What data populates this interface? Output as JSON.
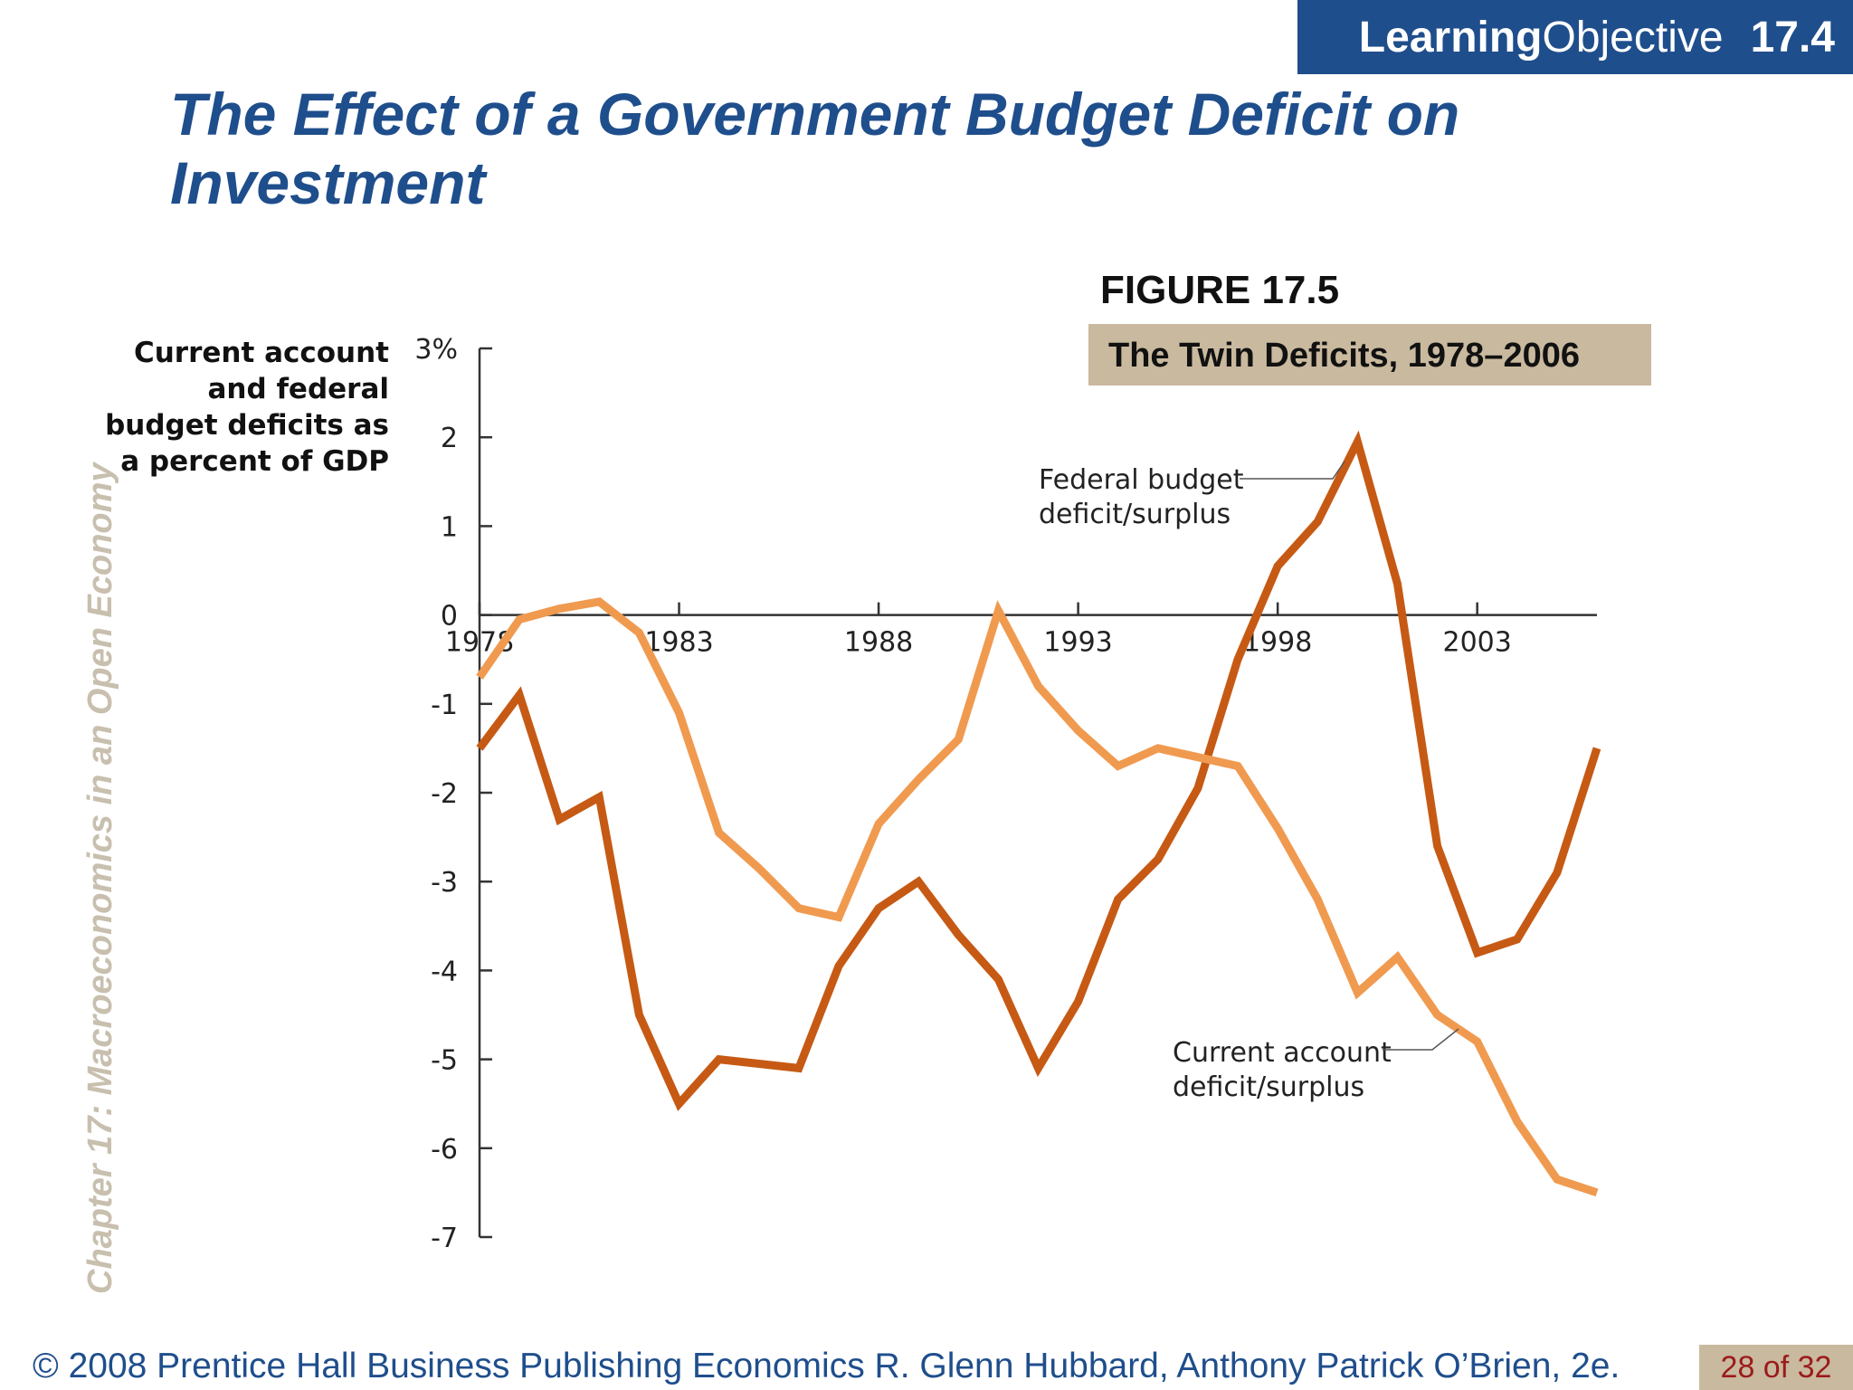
{
  "header": {
    "lo_bold": "Learning",
    "lo_rest": " Objective",
    "lo_number": "17.4"
  },
  "slide_title": "The Effect of a Government Budget Deficit on Investment",
  "sidebar_text": "Chapter 17:  Macroeconomics in an Open Economy",
  "figure": {
    "label": "FIGURE 17.5",
    "caption": "The Twin Deficits, 1978–2006"
  },
  "footer": {
    "copyright": "© 2008 Prentice Hall Business Publishing   Economics  R. Glenn Hubbard, Anthony Patrick O’Brien, 2e.",
    "page": "28 of 32"
  },
  "colors": {
    "title": "#1f4e8c",
    "federal_budget": "#c65a14",
    "current_account": "#f09a50",
    "caption_bg": "#c9b99e"
  },
  "chart_data": {
    "type": "line",
    "ylabel": "Current account and federal budget deficits as a percent of GDP",
    "ylim": [
      -7,
      3
    ],
    "yticks": [
      3,
      2,
      1,
      0,
      -1,
      -2,
      -3,
      -4,
      -5,
      -6,
      -7
    ],
    "ytick_labels": [
      "3%",
      "2",
      "1",
      "0",
      "-1",
      "-2",
      "-3",
      "-4",
      "-5",
      "-6",
      "-7"
    ],
    "xlim": [
      1978,
      2006
    ],
    "xticks": [
      1978,
      1983,
      1988,
      1993,
      1998,
      2003
    ],
    "xtick_labels": [
      "1978",
      "1983",
      "1988",
      "1993",
      "1998",
      "2003"
    ],
    "grid": false,
    "x": [
      1978,
      1979,
      1980,
      1981,
      1982,
      1983,
      1984,
      1985,
      1986,
      1987,
      1988,
      1989,
      1990,
      1991,
      1992,
      1993,
      1994,
      1995,
      1996,
      1997,
      1998,
      1999,
      2000,
      2001,
      2002,
      2003,
      2004,
      2005,
      2006
    ],
    "series": [
      {
        "name": "Federal budget deficit/surplus",
        "color": "#c65a14",
        "values": [
          -1.5,
          -0.9,
          -2.3,
          -2.05,
          -4.5,
          -5.5,
          -5.0,
          -5.05,
          -5.1,
          -3.95,
          -3.3,
          -3.0,
          -3.6,
          -4.1,
          -5.1,
          -4.35,
          -3.2,
          -2.75,
          -1.95,
          -0.5,
          0.55,
          1.05,
          1.95,
          0.35,
          -2.6,
          -3.8,
          -3.65,
          -2.9,
          -1.5
        ]
      },
      {
        "name": "Current account deficit/surplus",
        "color": "#f09a50",
        "values": [
          -0.7,
          -0.05,
          0.07,
          0.15,
          -0.2,
          -1.1,
          -2.45,
          -2.85,
          -3.3,
          -3.4,
          -2.35,
          -1.85,
          -1.4,
          0.05,
          -0.8,
          -1.3,
          -1.7,
          -1.5,
          -1.6,
          -1.7,
          -2.4,
          -3.2,
          -4.25,
          -3.85,
          -4.5,
          -4.8,
          -5.7,
          -6.35,
          -6.5
        ]
      }
    ]
  }
}
